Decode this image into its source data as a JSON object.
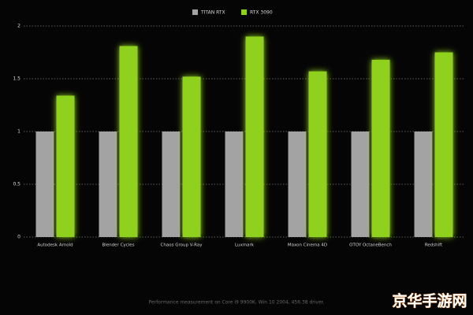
{
  "chart_data": {
    "type": "bar",
    "categories": [
      "Autodesk Arnold",
      "Blender Cycles",
      "Chaos Group V-Ray",
      "Luxmark",
      "Maxon Cinema 4D",
      "OTOY OctaneBench",
      "Redshift"
    ],
    "series": [
      {
        "name": "TITAN RTX",
        "color": "#a3a3a3",
        "values": [
          1,
          1,
          1,
          1,
          1,
          1,
          1
        ]
      },
      {
        "name": "RTX 3090",
        "color": "#8fd11a",
        "values": [
          1.34,
          1.81,
          1.52,
          1.9,
          1.57,
          1.68,
          1.75
        ]
      }
    ],
    "ylim": [
      0,
      2
    ],
    "yticks": [
      0,
      0.5,
      1,
      1.5,
      2
    ],
    "grid": true,
    "legend": "top",
    "footnote": "Performance measurement on Core i9 9900K, Win 10 2004, 456.38 driver.",
    "watermark": "京华手游网"
  }
}
